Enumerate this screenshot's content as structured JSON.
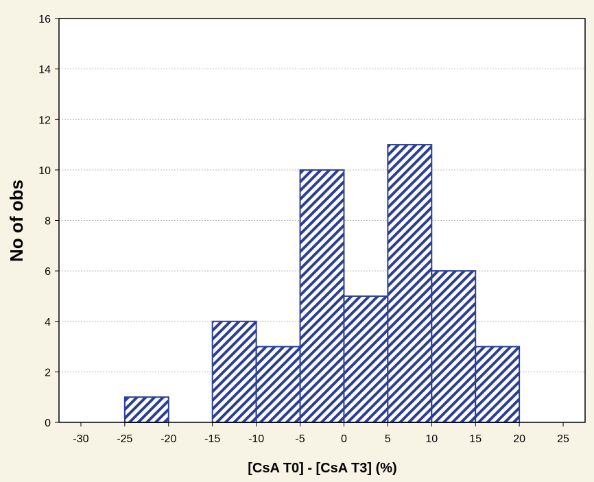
{
  "chart_data": {
    "type": "bar",
    "xlabel": "[CsA T0] - [CsA T3] (%)",
    "ylabel": "No of obs",
    "xlim": [
      -32.5,
      27.5
    ],
    "ylim": [
      0,
      16
    ],
    "x_ticks": [
      -30,
      -25,
      -20,
      -15,
      -10,
      -5,
      0,
      5,
      10,
      15,
      20,
      25
    ],
    "y_ticks": [
      0,
      2,
      4,
      6,
      8,
      10,
      12,
      14,
      16
    ],
    "bins": [
      {
        "start": -25,
        "end": -20,
        "count": 1
      },
      {
        "start": -20,
        "end": -15,
        "count": 0
      },
      {
        "start": -15,
        "end": -10,
        "count": 4
      },
      {
        "start": -10,
        "end": -5,
        "count": 3
      },
      {
        "start": -5,
        "end": 0,
        "count": 10
      },
      {
        "start": 0,
        "end": 5,
        "count": 5
      },
      {
        "start": 5,
        "end": 10,
        "count": 11
      },
      {
        "start": 10,
        "end": 15,
        "count": 6
      },
      {
        "start": 15,
        "end": 20,
        "count": 3
      }
    ],
    "grid": true,
    "legend": "none",
    "colors": {
      "bar_stroke": "#2b3f96",
      "hatch": "#2b3f96",
      "background": "#f7f4e6",
      "plot_bg": "#ffffff"
    }
  }
}
